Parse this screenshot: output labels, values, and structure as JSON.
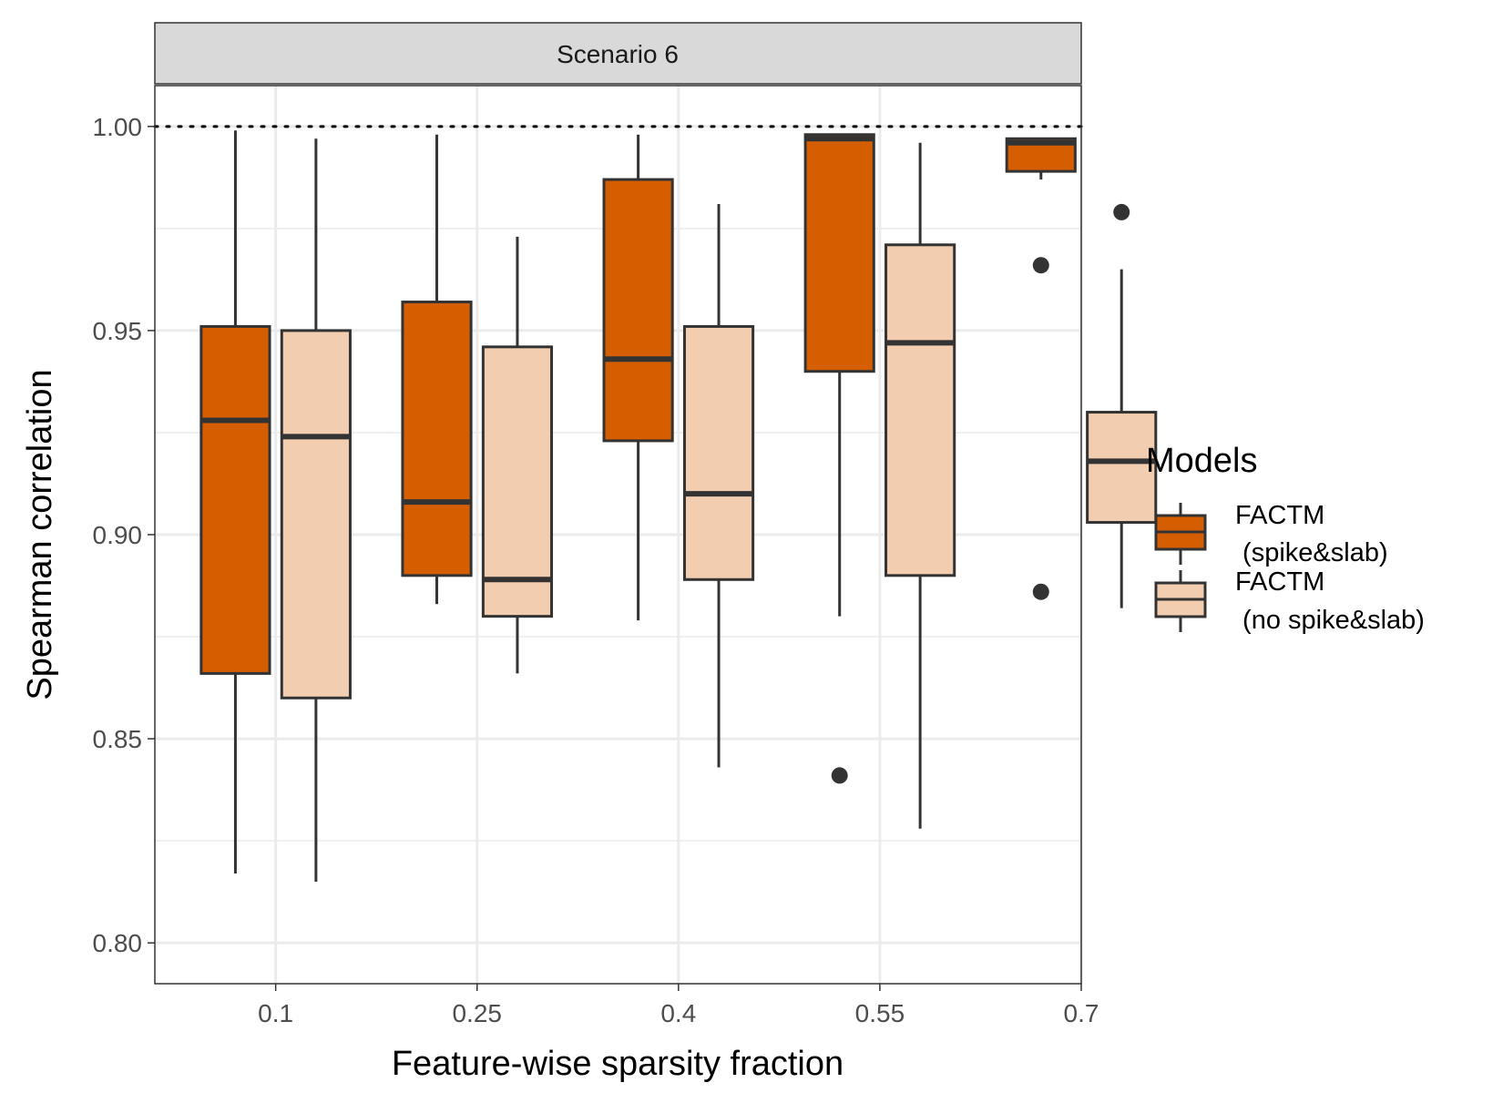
{
  "chart_data": {
    "type": "box",
    "facet_label": "Scenario 6",
    "xlabel": "Feature-wise sparsity fraction",
    "ylabel": "Spearman correlation",
    "categories": [
      "0.1",
      "0.25",
      "0.4",
      "0.55",
      "0.7"
    ],
    "ylim": [
      0.79,
      1.01
    ],
    "yticks": [
      0.8,
      0.85,
      0.9,
      0.95,
      1.0
    ],
    "ytick_labels": [
      "0.80",
      "0.85",
      "0.90",
      "0.95",
      "1.00"
    ],
    "reference_line": 1.0,
    "grid": true,
    "legend": {
      "title": "Models",
      "placement": "right",
      "entries": [
        {
          "line1": "FACTM",
          "line2": " (spike&slab)"
        },
        {
          "line1": "FACTM",
          "line2": " (no spike&slab)"
        }
      ]
    },
    "series": [
      {
        "name": "FACTM (spike&slab)",
        "color": "#d55e00",
        "boxes": [
          {
            "low": 0.817,
            "q1": 0.866,
            "median": 0.928,
            "q3": 0.951,
            "high": 0.999,
            "outliers": []
          },
          {
            "low": 0.883,
            "q1": 0.89,
            "median": 0.908,
            "q3": 0.957,
            "high": 0.998,
            "outliers": []
          },
          {
            "low": 0.879,
            "q1": 0.923,
            "median": 0.943,
            "q3": 0.987,
            "high": 0.998,
            "outliers": []
          },
          {
            "low": 0.88,
            "q1": 0.94,
            "median": 0.997,
            "q3": 0.998,
            "high": 0.998,
            "outliers": [
              0.841
            ]
          },
          {
            "low": 0.987,
            "q1": 0.989,
            "median": 0.996,
            "q3": 0.997,
            "high": 0.997,
            "outliers": [
              0.966,
              0.886
            ]
          }
        ]
      },
      {
        "name": "FACTM (no spike&slab)",
        "color": "#f2cdb0",
        "boxes": [
          {
            "low": 0.815,
            "q1": 0.86,
            "median": 0.924,
            "q3": 0.95,
            "high": 0.997,
            "outliers": []
          },
          {
            "low": 0.866,
            "q1": 0.88,
            "median": 0.889,
            "q3": 0.946,
            "high": 0.973,
            "outliers": []
          },
          {
            "low": 0.843,
            "q1": 0.889,
            "median": 0.91,
            "q3": 0.951,
            "high": 0.981,
            "outliers": []
          },
          {
            "low": 0.828,
            "q1": 0.89,
            "median": 0.947,
            "q3": 0.971,
            "high": 0.996,
            "outliers": []
          },
          {
            "low": 0.882,
            "q1": 0.903,
            "median": 0.918,
            "q3": 0.93,
            "high": 0.965,
            "outliers": [
              0.979
            ]
          }
        ]
      }
    ]
  }
}
